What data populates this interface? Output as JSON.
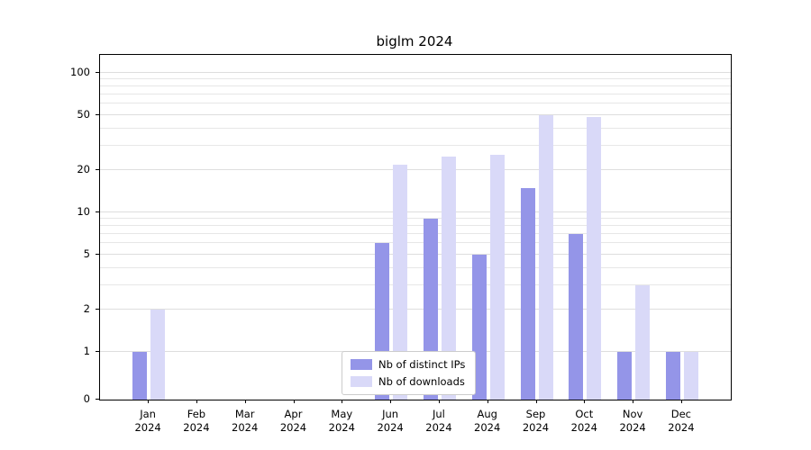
{
  "title": "biglm 2024",
  "axes": {
    "y_tick_values": [
      0,
      1,
      2,
      5,
      10,
      20,
      50,
      100
    ],
    "grid_values": [
      1,
      2,
      3,
      4,
      5,
      6,
      7,
      8,
      9,
      10,
      20,
      30,
      40,
      50,
      60,
      70,
      80,
      90,
      100
    ],
    "months": [
      {
        "month": "Jan",
        "year": "2024"
      },
      {
        "month": "Feb",
        "year": "2024"
      },
      {
        "month": "Mar",
        "year": "2024"
      },
      {
        "month": "Apr",
        "year": "2024"
      },
      {
        "month": "May",
        "year": "2024"
      },
      {
        "month": "Jun",
        "year": "2024"
      },
      {
        "month": "Jul",
        "year": "2024"
      },
      {
        "month": "Aug",
        "year": "2024"
      },
      {
        "month": "Sep",
        "year": "2024"
      },
      {
        "month": "Oct",
        "year": "2024"
      },
      {
        "month": "Nov",
        "year": "2024"
      },
      {
        "month": "Dec",
        "year": "2024"
      }
    ]
  },
  "chart_data": {
    "type": "bar",
    "title": "biglm 2024",
    "categories": [
      "Jan 2024",
      "Feb 2024",
      "Mar 2024",
      "Apr 2024",
      "May 2024",
      "Jun 2024",
      "Jul 2024",
      "Aug 2024",
      "Sep 2024",
      "Oct 2024",
      "Nov 2024",
      "Dec 2024"
    ],
    "series": [
      {
        "name": "Nb of distinct IPs",
        "color": "#9495e8",
        "values": [
          1,
          0,
          0,
          0,
          0,
          6,
          9,
          5,
          15,
          7,
          1,
          1
        ]
      },
      {
        "name": "Nb of downloads",
        "color": "#d9d9f8",
        "values": [
          2,
          0,
          0,
          0,
          0,
          22,
          25,
          26,
          50,
          48,
          3,
          1
        ]
      }
    ],
    "xlabel": "",
    "ylabel": "",
    "yscale": "symlog",
    "ylim": [
      0,
      135
    ],
    "grid": "horizontal",
    "legend_position": "lower center"
  }
}
